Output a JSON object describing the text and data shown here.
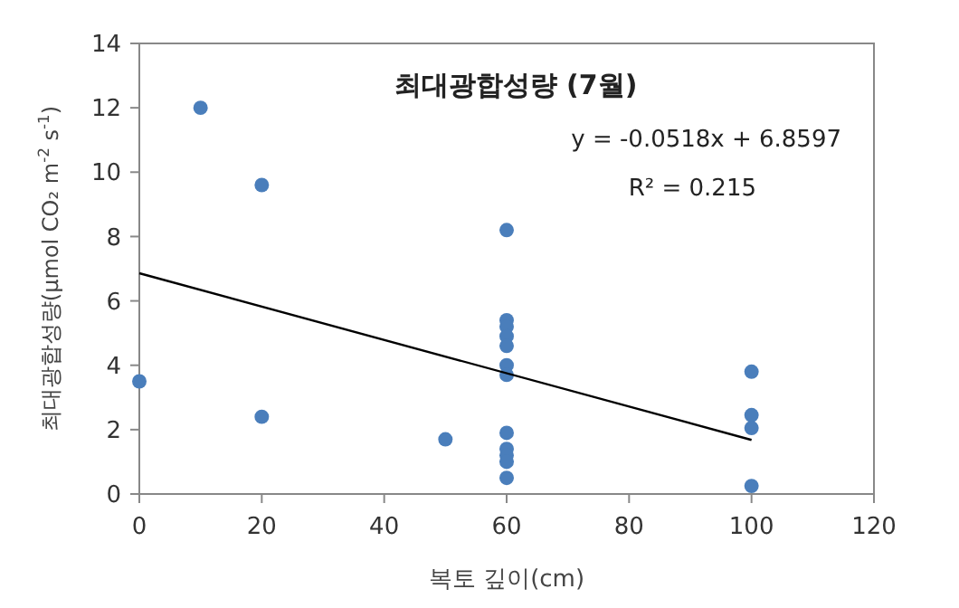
{
  "chart_data": {
    "type": "scatter",
    "title": "최대광합성량 (7월)",
    "xlabel": "복토 깊이(cm)",
    "ylabel": "최대광합성량(μmol CO₂ m$^{-2}$ s$^{-1}$)",
    "xlim": [
      0,
      120
    ],
    "xticks": [
      0,
      20,
      40,
      60,
      80,
      100,
      120
    ],
    "ylim": [
      0,
      14
    ],
    "yticks": [
      0,
      2,
      4,
      6,
      8,
      10,
      12,
      14
    ],
    "grid": false,
    "marker": "circle",
    "annotations": [
      "y = -0.0518x + 6.8597",
      "R² = 0.215"
    ],
    "series": [
      {
        "color": "#4a7ebb",
        "x": [
          0,
          10,
          20,
          20,
          50,
          60,
          60,
          60,
          60,
          60,
          60,
          60,
          60,
          60,
          60,
          60,
          60,
          100,
          100,
          100,
          100
        ],
        "values": [
          3.5,
          12,
          9.6,
          2.4,
          1.7,
          8.2,
          5.4,
          5.2,
          4.9,
          4.6,
          4.0,
          3.7,
          1.9,
          1.4,
          1.2,
          1.0,
          0.5,
          3.8,
          2.45,
          2.05,
          0.25
        ]
      },
      {
        "type": "line",
        "color": "#000000",
        "line_style": "solid",
        "marker": "none",
        "x": [
          0,
          100
        ],
        "values": [
          6.86,
          1.68
        ]
      }
    ]
  }
}
